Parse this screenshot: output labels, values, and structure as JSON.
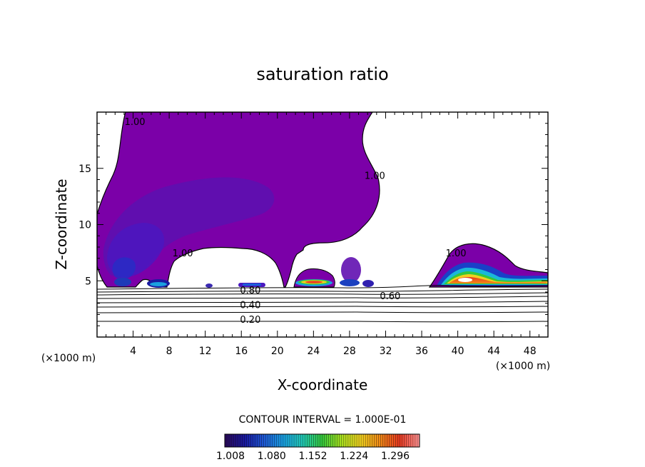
{
  "chart_data": {
    "type": "heatmap",
    "title": "saturation ratio",
    "xlabel": "X-coordinate",
    "ylabel": "Z-coordinate",
    "x_unit_left": "(×1000 m)",
    "x_unit_right": "(×1000 m)",
    "xlim": [
      0,
      50
    ],
    "ylim": [
      0,
      20
    ],
    "x_ticks": [
      4,
      8,
      12,
      16,
      20,
      24,
      28,
      32,
      36,
      40,
      44,
      48
    ],
    "y_ticks": [
      5,
      10,
      15
    ],
    "contour_interval_text": "CONTOUR INTERVAL = 1.000E-01",
    "contour_labels": [
      {
        "text": "1.00",
        "x": 4.2,
        "z": 19.0
      },
      {
        "text": "1.00",
        "x": 30.8,
        "z": 14.2
      },
      {
        "text": "1.00",
        "x": 9.5,
        "z": 7.3
      },
      {
        "text": "1.00",
        "x": 39.8,
        "z": 7.3
      },
      {
        "text": "0.80",
        "x": 17.0,
        "z": 4.0
      },
      {
        "text": "0.60",
        "x": 32.5,
        "z": 3.5
      },
      {
        "text": "0.40",
        "x": 17.0,
        "z": 2.7
      },
      {
        "text": "0.20",
        "x": 17.0,
        "z": 1.4
      }
    ],
    "colorbar": {
      "ticks": [
        "1.008",
        "1.080",
        "1.152",
        "1.224",
        "1.296"
      ],
      "colors": [
        "#2a0a5e",
        "#1a1aa0",
        "#1e5ad6",
        "#1aa0e0",
        "#22c9b4",
        "#34c83c",
        "#a8e020",
        "#f0d020",
        "#f08a18",
        "#e83a20",
        "#ff9090"
      ]
    }
  }
}
